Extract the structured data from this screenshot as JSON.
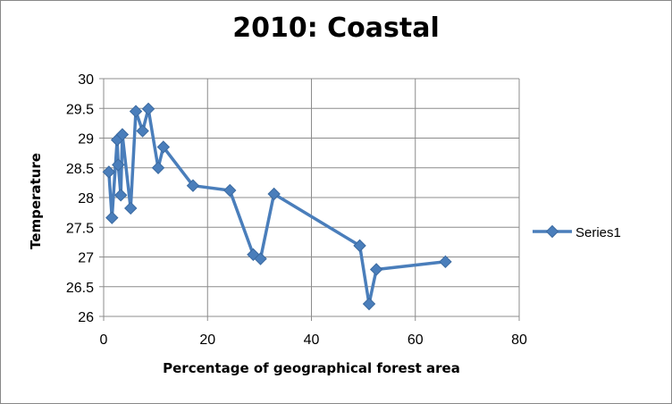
{
  "chart_data": {
    "type": "scatter",
    "title": "2010: Coastal",
    "xlabel": "Percentage of geographical forest area",
    "ylabel": "Temperature",
    "xlim": [
      0,
      80
    ],
    "ylim": [
      26,
      30
    ],
    "xticks": [
      0,
      20,
      40,
      60,
      80
    ],
    "yticks": [
      26,
      26.5,
      27,
      27.5,
      28,
      28.5,
      29,
      29.5,
      30
    ],
    "grid": true,
    "legend_position": "right",
    "color": "#4a7ebb",
    "marker": "diamond",
    "series": [
      {
        "name": "Series1",
        "x": [
          1.0,
          1.6,
          2.6,
          2.8,
          3.3,
          3.6,
          5.2,
          6.2,
          7.5,
          8.6,
          10.5,
          11.5,
          17.2,
          24.3,
          28.8,
          30.2,
          32.8,
          49.3,
          51.1,
          52.5,
          65.8
        ],
        "y": [
          28.43,
          27.66,
          28.97,
          28.55,
          28.04,
          29.06,
          27.82,
          29.45,
          29.12,
          29.49,
          28.5,
          28.85,
          28.2,
          28.12,
          27.04,
          26.97,
          28.06,
          27.19,
          26.21,
          26.79,
          26.92
        ]
      }
    ]
  }
}
